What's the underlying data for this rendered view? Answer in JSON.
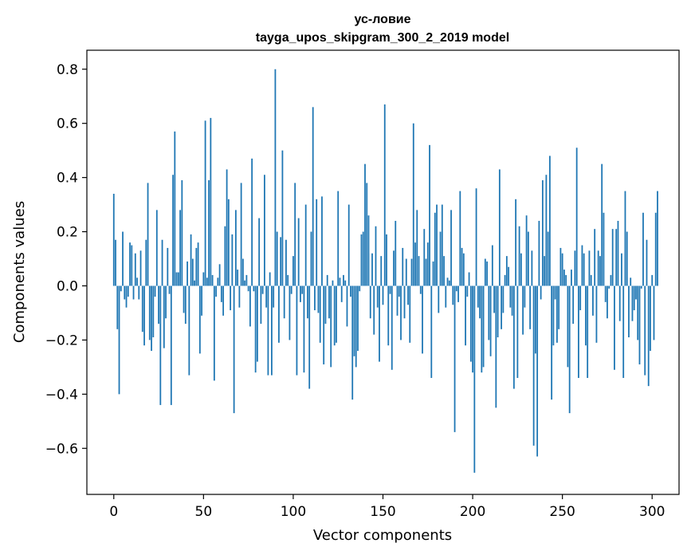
{
  "chart_data": {
    "type": "bar",
    "title_line1": "ус-ловие",
    "title_line2": "tayga_upos_skipgram_300_2_2019 model",
    "xlabel": "Vector components",
    "ylabel": "Components values",
    "xlim": [
      -15,
      315
    ],
    "ylim": [
      -0.77,
      0.87
    ],
    "x_ticks": [
      0,
      50,
      100,
      150,
      200,
      250,
      300
    ],
    "x_tick_labels": [
      "0",
      "50",
      "100",
      "150",
      "200",
      "250",
      "300"
    ],
    "y_ticks": [
      -0.6,
      -0.4,
      -0.2,
      0.0,
      0.2,
      0.4,
      0.6,
      0.8
    ],
    "y_tick_labels": [
      "−0.6",
      "−0.4",
      "−0.2",
      "0.0",
      "0.2",
      "0.4",
      "0.6",
      "0.8"
    ],
    "bar_color": "#1f77b4",
    "values": [
      0.34,
      0.17,
      -0.16,
      -0.4,
      -0.02,
      0.2,
      -0.05,
      -0.08,
      -0.04,
      0.16,
      0.15,
      -0.05,
      0.12,
      0.03,
      -0.05,
      0.13,
      -0.17,
      -0.22,
      0.17,
      0.38,
      -0.2,
      -0.24,
      -0.19,
      -0.04,
      0.28,
      -0.14,
      -0.44,
      0.17,
      -0.23,
      -0.12,
      0.14,
      -0.03,
      -0.44,
      0.41,
      0.57,
      0.05,
      0.05,
      0.28,
      0.39,
      -0.1,
      -0.14,
      0.09,
      -0.33,
      0.19,
      0.1,
      0.02,
      0.14,
      0.16,
      -0.25,
      -0.11,
      0.05,
      0.61,
      0.03,
      0.39,
      0.62,
      0.04,
      -0.35,
      -0.04,
      0.03,
      0.08,
      -0.06,
      -0.11,
      0.22,
      0.43,
      0.32,
      -0.09,
      0.19,
      -0.47,
      0.28,
      0.06,
      -0.08,
      0.38,
      0.1,
      0.02,
      0.04,
      -0.02,
      -0.15,
      0.47,
      -0.02,
      -0.32,
      -0.28,
      0.25,
      -0.14,
      -0.03,
      0.41,
      -0.08,
      -0.33,
      0.05,
      -0.33,
      -0.08,
      0.8,
      0.2,
      -0.21,
      0.18,
      0.5,
      -0.12,
      0.17,
      0.04,
      -0.2,
      -0.03,
      0.11,
      0.38,
      -0.33,
      0.25,
      -0.06,
      -0.03,
      -0.32,
      0.3,
      -0.12,
      -0.38,
      0.2,
      0.66,
      -0.09,
      0.32,
      -0.1,
      -0.21,
      0.33,
      -0.29,
      -0.14,
      0.04,
      -0.12,
      -0.3,
      0.02,
      -0.22,
      -0.21,
      0.35,
      0.03,
      -0.06,
      0.04,
      0.02,
      -0.15,
      0.3,
      -0.04,
      -0.42,
      -0.26,
      -0.3,
      -0.24,
      -0.02,
      0.19,
      0.2,
      0.45,
      0.38,
      0.26,
      -0.12,
      0.12,
      -0.18,
      0.22,
      -0.08,
      -0.28,
      0.11,
      -0.07,
      0.67,
      0.19,
      -0.22,
      -0.03,
      -0.31,
      0.13,
      0.24,
      -0.11,
      -0.04,
      -0.2,
      0.14,
      -0.12,
      0.1,
      -0.07,
      -0.21,
      0.1,
      0.6,
      0.16,
      0.28,
      0.11,
      -0.03,
      -0.25,
      0.21,
      0.1,
      0.16,
      0.52,
      -0.34,
      0.09,
      0.27,
      0.3,
      -0.1,
      0.2,
      0.3,
      0.11,
      -0.08,
      0.03,
      0.02,
      0.28,
      -0.07,
      -0.54,
      -0.02,
      -0.06,
      0.35,
      0.14,
      0.12,
      -0.22,
      -0.04,
      0.05,
      -0.28,
      -0.32,
      -0.69,
      0.36,
      -0.08,
      -0.12,
      -0.32,
      -0.3,
      0.1,
      0.09,
      -0.2,
      -0.26,
      0.15,
      -0.1,
      -0.45,
      -0.19,
      0.43,
      -0.16,
      -0.1,
      0.04,
      0.11,
      0.07,
      -0.08,
      -0.11,
      -0.38,
      0.32,
      -0.34,
      0.22,
      0.12,
      -0.18,
      -0.08,
      0.26,
      0.2,
      -0.16,
      0.13,
      -0.59,
      -0.25,
      -0.63,
      0.24,
      -0.05,
      0.39,
      0.11,
      0.41,
      0.2,
      0.48,
      -0.42,
      -0.22,
      -0.05,
      -0.21,
      -0.16,
      0.14,
      0.12,
      0.06,
      0.04,
      -0.3,
      -0.47,
      0.06,
      -0.14,
      0.13,
      0.51,
      -0.34,
      -0.09,
      0.15,
      0.12,
      -0.22,
      -0.34,
      0.13,
      0.04,
      -0.11,
      0.21,
      -0.21,
      0.13,
      0.11,
      0.45,
      0.27,
      -0.06,
      -0.12,
      -0.01,
      0.04,
      0.21,
      -0.31,
      0.21,
      0.24,
      -0.13,
      0.12,
      -0.34,
      0.35,
      0.2,
      -0.19,
      0.03,
      -0.13,
      -0.09,
      -0.05,
      -0.2,
      -0.29,
      -0.01,
      0.27,
      -0.33,
      0.17,
      -0.37,
      -0.24,
      0.04,
      -0.2,
      0.27,
      0.35
    ]
  }
}
